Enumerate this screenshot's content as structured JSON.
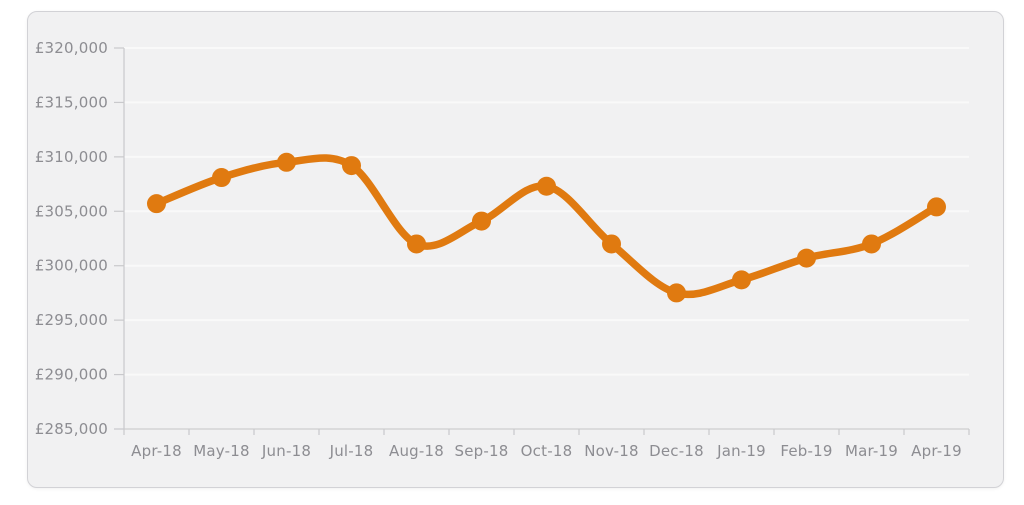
{
  "page": {
    "background_color": "#ffffff"
  },
  "card": {
    "background_color": "#f1f1f2",
    "border_color": "#d2d2d6"
  },
  "chart_data": {
    "type": "line",
    "title": "",
    "categories": [
      "Apr-18",
      "May-18",
      "Jun-18",
      "Jul-18",
      "Aug-18",
      "Sep-18",
      "Oct-18",
      "Nov-18",
      "Dec-18",
      "Jan-19",
      "Feb-19",
      "Mar-19",
      "Apr-19"
    ],
    "values": [
      305700,
      308100,
      309500,
      309200,
      302000,
      304100,
      307300,
      302000,
      297500,
      298700,
      300700,
      302000,
      305400
    ],
    "xlabel": "",
    "ylabel": "",
    "ylim": [
      285000,
      320000
    ],
    "y_tick_step": 5000,
    "y_ticks": [
      {
        "value": 320000,
        "label": "£320,000"
      },
      {
        "value": 315000,
        "label": "£315,000"
      },
      {
        "value": 310000,
        "label": "£310,000"
      },
      {
        "value": 305000,
        "label": "£305,000"
      },
      {
        "value": 300000,
        "label": "£300,000"
      },
      {
        "value": 295000,
        "label": "£295,000"
      },
      {
        "value": 290000,
        "label": "£290,000"
      },
      {
        "value": 285000,
        "label": "£285,000"
      }
    ],
    "grid": true,
    "legend": false,
    "line_smoothing": "spline",
    "colors": {
      "line": "#e07a10",
      "marker": "#e07a10",
      "axis": "#c9c9cc",
      "tick": "#c9c9cc",
      "gridline": "#fafafa",
      "label_text": "#8d8d92"
    }
  }
}
